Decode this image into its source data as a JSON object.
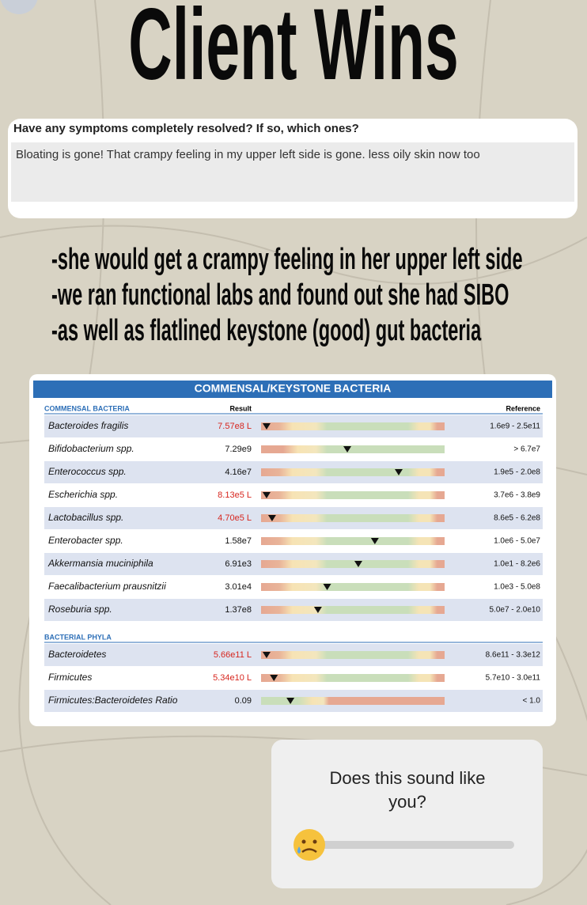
{
  "title": "Client Wins",
  "form": {
    "question": "Have any symptoms completely resolved? If so, which ones?",
    "answer": "Bloating is gone! That crampy feeling in my upper left side is gone. less oily skin now too"
  },
  "notes": [
    "-she would get a crampy feeling in her upper left side",
    "-we ran functional labs and found out she had SIBO",
    "-as well as flatlined keystone (good) gut bacteria"
  ],
  "table": {
    "title": "COMMENSAL/KEYSTONE BACTERIA",
    "result_header": "Result",
    "reference_header": "Reference",
    "sections": [
      {
        "name": "COMMENSAL BACTERIA",
        "rows": [
          [
            "Bacteroides fragilis",
            "7.57e8 L",
            "1.6e9 - 2.5e11"
          ],
          [
            "Bifidobacterium  spp.",
            "7.29e9",
            "> 6.7e7"
          ],
          [
            "Enterococcus spp.",
            "4.16e7",
            "1.9e5 - 2.0e8"
          ],
          [
            "Escherichia  spp.",
            "8.13e5 L",
            "3.7e6 - 3.8e9"
          ],
          [
            "Lactobacillus spp.",
            "4.70e5 L",
            "8.6e5 - 6.2e8"
          ],
          [
            "Enterobacter spp.",
            "1.58e7",
            "1.0e6 - 5.0e7"
          ],
          [
            "Akkermansia muciniphila",
            "6.91e3",
            "1.0e1 - 8.2e6"
          ],
          [
            "Faecalibacterium prausnitzii",
            "3.01e4",
            "1.0e3 - 5.0e8"
          ],
          [
            "Roseburia spp.",
            "1.37e8",
            "5.0e7 - 2.0e10"
          ]
        ]
      },
      {
        "name": "BACTERIAL PHYLA",
        "rows": [
          [
            "Bacteroidetes",
            "5.66e11 L",
            "8.6e11 - 3.3e12"
          ],
          [
            "Firmicutes",
            "5.34e10 L",
            "5.7e10 - 3.0e11"
          ],
          [
            "Firmicutes:Bacteroidetes Ratio",
            "0.09",
            "< 1.0"
          ]
        ]
      }
    ]
  },
  "poll": {
    "question": "Does this sound like you?"
  }
}
